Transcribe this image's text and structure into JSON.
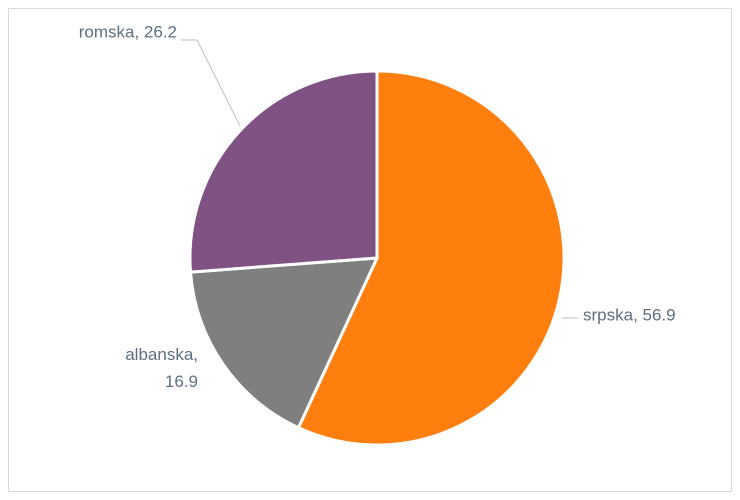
{
  "chart_data": {
    "type": "pie",
    "categories": [
      "srpska",
      "albanska",
      "romska"
    ],
    "values": [
      56.9,
      16.9,
      26.2
    ],
    "value_labels": [
      "srpska, 56.9",
      "albanska, 16.9",
      "romska, 26.2"
    ],
    "colors": [
      "#ff7f0e",
      "#7f7f7f",
      "#7f5283"
    ],
    "start_angle": 0,
    "direction": "clockwise"
  }
}
